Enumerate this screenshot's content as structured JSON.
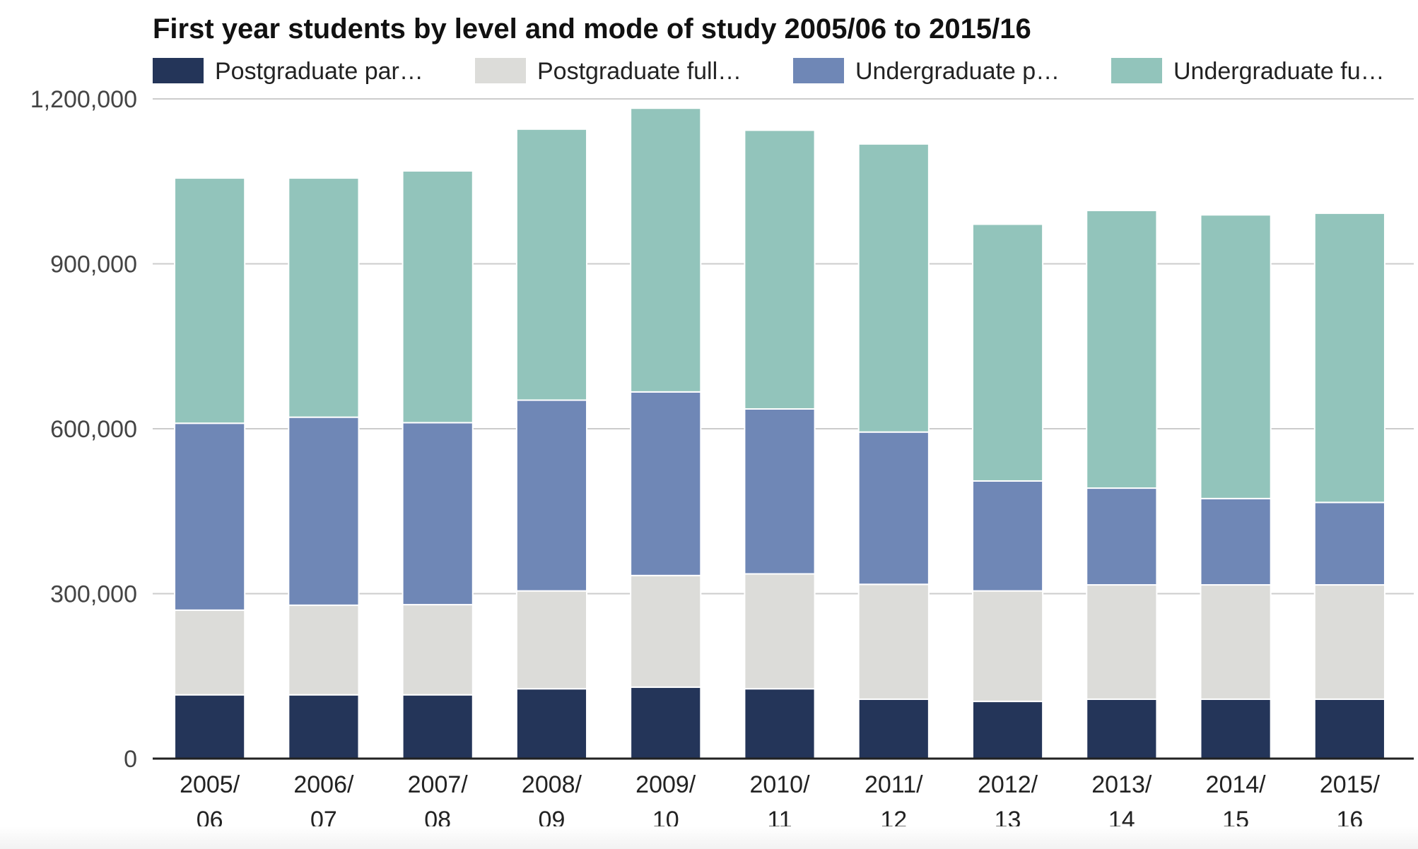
{
  "chart_data": {
    "type": "bar",
    "stacked": true,
    "title": "First year students by level and mode of study 2005/06 to 2015/16",
    "xlabel": "",
    "ylabel": "",
    "ylim": [
      0,
      1200000
    ],
    "yticks": [
      0,
      300000,
      600000,
      900000,
      1200000
    ],
    "ytick_labels": [
      "0",
      "300,000",
      "600,000",
      "900,000",
      "1,200,000"
    ],
    "grid": true,
    "legend_position": "top",
    "categories": [
      "2005/06",
      "2006/07",
      "2007/08",
      "2008/09",
      "2009/10",
      "2010/11",
      "2011/12",
      "2012/13",
      "2013/14",
      "2014/15",
      "2015/16"
    ],
    "category_lines": [
      [
        "2005/",
        "06"
      ],
      [
        "2006/",
        "07"
      ],
      [
        "2007/",
        "08"
      ],
      [
        "2008/",
        "09"
      ],
      [
        "2009/",
        "10"
      ],
      [
        "2010/",
        "11"
      ],
      [
        "2011/",
        "12"
      ],
      [
        "2012/",
        "13"
      ],
      [
        "2013/",
        "14"
      ],
      [
        "2014/",
        "15"
      ],
      [
        "2015/",
        "16"
      ]
    ],
    "series": [
      {
        "name": "Postgraduate par…",
        "color": "#243559",
        "values": [
          116000,
          116000,
          116000,
          127000,
          130000,
          127000,
          108000,
          104000,
          108000,
          108000,
          108000
        ]
      },
      {
        "name": "Postgraduate full…",
        "color": "#dcdcd9",
        "values": [
          154000,
          163000,
          164000,
          178000,
          203000,
          209000,
          209000,
          201000,
          208000,
          208000,
          208000
        ]
      },
      {
        "name": "Undergraduate p…",
        "color": "#6f87b6",
        "values": [
          340000,
          342000,
          331000,
          347000,
          334000,
          300000,
          277000,
          200000,
          176000,
          157000,
          150000
        ]
      },
      {
        "name": "Undergraduate fu…",
        "color": "#92c4bb",
        "values": [
          446000,
          435000,
          458000,
          493000,
          516000,
          507000,
          524000,
          467000,
          505000,
          516000,
          526000
        ]
      }
    ]
  }
}
